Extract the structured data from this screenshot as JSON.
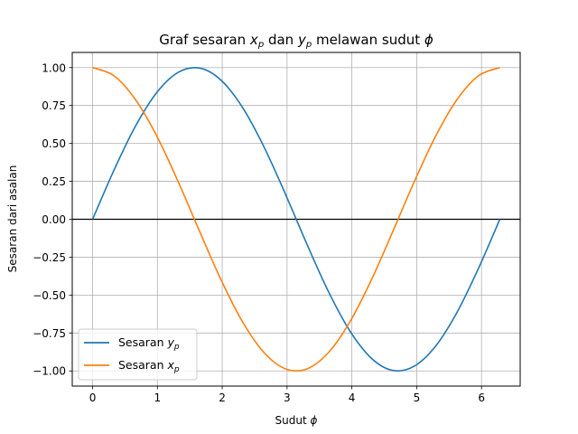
{
  "chart_data": {
    "type": "line",
    "title_parts": [
      "Graf sesaran ",
      "x",
      "p",
      " dan ",
      "y",
      "p",
      " melawan sudut ",
      "ϕ"
    ],
    "xlabel_parts": [
      "Sudut ",
      "ϕ"
    ],
    "ylabel": "Sesaran dari asalan",
    "xlim": [
      -0.314,
      6.597
    ],
    "ylim": [
      -1.1,
      1.1
    ],
    "xticks": [
      0,
      1,
      2,
      3,
      4,
      5,
      6
    ],
    "xtick_labels": [
      "0",
      "1",
      "2",
      "3",
      "4",
      "5",
      "6"
    ],
    "yticks": [
      -1.0,
      -0.75,
      -0.5,
      -0.25,
      0.0,
      0.25,
      0.5,
      0.75,
      1.0
    ],
    "ytick_labels": [
      "−1.00",
      "−0.75",
      "−0.50",
      "−0.25",
      "0.00",
      "0.25",
      "0.50",
      "0.75",
      "1.00"
    ],
    "grid": true,
    "hline_y": 0,
    "legend_position": "lower-left",
    "x": [
      0,
      0.3307,
      0.6614,
      0.9921,
      1.3228,
      1.6535,
      1.9842,
      2.3149,
      2.6456,
      2.9763,
      3.307,
      3.6377,
      3.9684,
      4.2991,
      4.6298,
      4.9605,
      5.2912,
      5.6219,
      5.9526,
      6.2832
    ],
    "series": [
      {
        "name_parts": [
          "Sesaran ",
          "y",
          "p"
        ],
        "color": "#1f77b4",
        "values": [
          0.0,
          0.3247,
          0.6142,
          0.8372,
          0.9694,
          0.9966,
          0.9158,
          0.7357,
          0.4759,
          0.1646,
          -0.1646,
          -0.4759,
          -0.7357,
          -0.9158,
          -0.9966,
          -0.9694,
          -0.8372,
          -0.6142,
          -0.3247,
          0.0
        ]
      },
      {
        "name_parts": [
          "Sesaran ",
          "x",
          "p"
        ],
        "color": "#ff7f0e",
        "values": [
          1.0,
          0.9458,
          0.7891,
          0.5469,
          0.2455,
          -0.0826,
          -0.4017,
          -0.6773,
          -0.8795,
          -0.9864,
          -0.9864,
          -0.8795,
          -0.6773,
          -0.4017,
          -0.0826,
          0.2455,
          0.5469,
          0.7891,
          0.9458,
          1.0
        ]
      }
    ]
  }
}
